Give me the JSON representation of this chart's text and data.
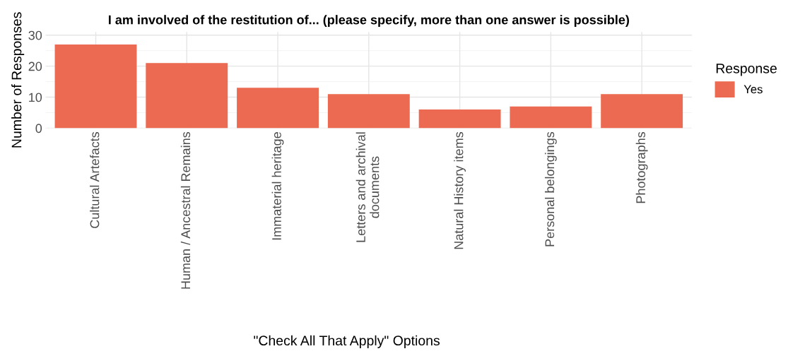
{
  "chart_data": {
    "type": "bar",
    "title": "I am involved of the restitution of... (please specify, more than one answer is possible)",
    "xlabel": "\"Check All That Apply\" Options",
    "ylabel": "Number of Responses",
    "legend_title": "Response",
    "categories": [
      "Cultural Artefacts",
      "Human / Ancestral Remains",
      "Immaterial heritage",
      "Letters and archival\ndocuments",
      "Natural History items",
      "Personal belongings",
      "Photographs"
    ],
    "series": [
      {
        "name": "Yes",
        "color": "#eb6a51",
        "values": [
          27,
          21,
          13,
          11,
          6,
          7,
          11
        ]
      }
    ],
    "ylim": [
      0,
      31
    ],
    "yticks": [
      0,
      10,
      20,
      30
    ],
    "grid": true,
    "legend": "right"
  }
}
